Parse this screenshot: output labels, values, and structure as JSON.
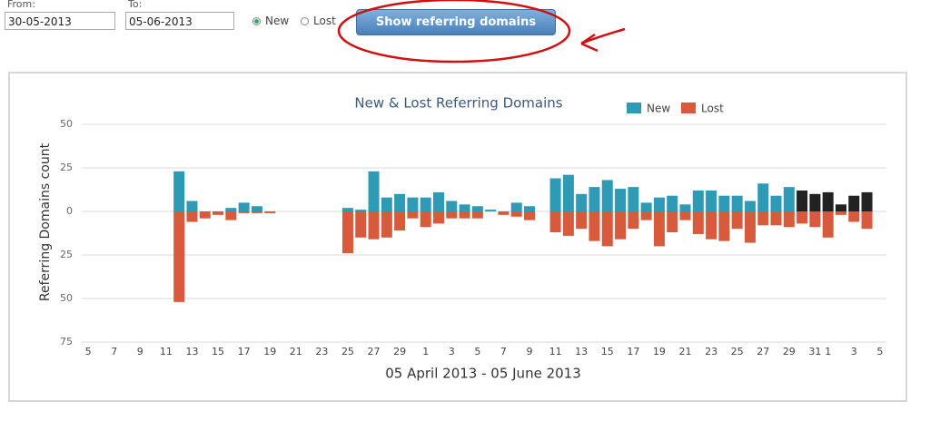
{
  "form": {
    "from_label": "From:",
    "from_value": "30-05-2013",
    "to_label": "To:",
    "to_value": "05-06-2013",
    "options": [
      "New",
      "Lost"
    ],
    "button": "Show referring domains"
  },
  "chart_data": {
    "type": "bar",
    "title": "New & Lost Referring Domains",
    "x_label": "05 April 2013 - 05 June 2013",
    "y_label": "Referring Domains count",
    "categories": [
      "5",
      null,
      "7",
      null,
      "9",
      null,
      "11",
      null,
      "13",
      null,
      "15",
      null,
      "17",
      null,
      "19",
      null,
      "21",
      null,
      "23",
      null,
      "25",
      null,
      "27",
      null,
      "29",
      null,
      "1",
      null,
      "3",
      null,
      "5",
      null,
      "7",
      null,
      "9",
      null,
      "11",
      null,
      "13",
      null,
      "15",
      null,
      "17",
      null,
      "19",
      null,
      "21",
      null,
      "23",
      null,
      "25",
      null,
      "27",
      null,
      "29",
      null,
      "31",
      "1",
      null,
      "3",
      null,
      "5"
    ],
    "series": [
      {
        "name": "New",
        "color": "#2f9ab5",
        "colors": [
          "#2f9ab5",
          "#2f9ab5",
          "#2f9ab5",
          "#2f9ab5",
          "#2f9ab5",
          "#2f9ab5",
          "#2f9ab5",
          "#2f9ab5",
          "#2f9ab5",
          "#2f9ab5",
          "#2f9ab5",
          "#2f9ab5",
          "#2f9ab5",
          "#2f9ab5",
          "#2f9ab5",
          "#2f9ab5",
          "#2f9ab5",
          "#2f9ab5",
          "#2f9ab5",
          "#2f9ab5",
          "#2f9ab5",
          "#2f9ab5",
          "#2f9ab5",
          "#2f9ab5",
          "#2f9ab5",
          "#2f9ab5",
          "#2f9ab5",
          "#2f9ab5",
          "#2f9ab5",
          "#2f9ab5",
          "#2f9ab5",
          "#2f9ab5",
          "#2f9ab5",
          "#2f9ab5",
          "#2f9ab5",
          "#2f9ab5",
          "#2f9ab5",
          "#2f9ab5",
          "#2f9ab5",
          "#2f9ab5",
          "#2f9ab5",
          "#2f9ab5",
          "#2f9ab5",
          "#2f9ab5",
          "#2f9ab5",
          "#2f9ab5",
          "#2f9ab5",
          "#2f9ab5",
          "#2f9ab5",
          "#2f9ab5",
          "#2f9ab5",
          "#2f9ab5",
          "#2f9ab5",
          "#2f9ab5",
          "#2f9ab5",
          "#222222",
          "#222222",
          "#222222",
          "#222222",
          "#222222",
          "#222222",
          "#2f9ab5"
        ],
        "values": [
          0,
          0,
          0,
          0,
          0,
          0,
          0,
          23,
          6,
          0,
          0,
          2,
          5,
          3,
          0,
          0,
          0,
          0,
          0,
          0,
          2,
          1,
          23,
          8,
          10,
          8,
          8,
          11,
          6,
          4,
          3,
          1,
          0,
          5,
          3,
          0,
          19,
          21,
          10,
          14,
          18,
          13,
          14,
          5,
          8,
          9,
          4,
          12,
          12,
          9,
          9,
          6,
          16,
          9,
          14,
          12,
          10,
          11,
          4,
          9,
          11,
          0
        ]
      },
      {
        "name": "Lost",
        "color": "#d85a3c",
        "values": [
          0,
          0,
          0,
          0,
          0,
          0,
          0,
          -52,
          -6,
          -4,
          -2,
          -5,
          -1,
          -1,
          -1,
          0,
          0,
          0,
          0,
          0,
          -24,
          -15,
          -16,
          -15,
          -11,
          -4,
          -9,
          -7,
          -4,
          -4,
          -4,
          0,
          -2,
          -3,
          -5,
          0,
          -12,
          -14,
          -10,
          -17,
          -20,
          -16,
          -10,
          -5,
          -20,
          -12,
          -5,
          -13,
          -16,
          -17,
          -10,
          -18,
          -8,
          -8,
          -9,
          -7,
          -9,
          -15,
          -2,
          -6,
          -10,
          0
        ]
      }
    ],
    "ylim": [
      -75,
      50
    ],
    "yticks": [
      50,
      25,
      0,
      {
        "value": -25,
        "label": "25"
      },
      {
        "value": -50,
        "label": "50"
      },
      {
        "value": -75,
        "label": "75"
      }
    ],
    "grid": true
  }
}
